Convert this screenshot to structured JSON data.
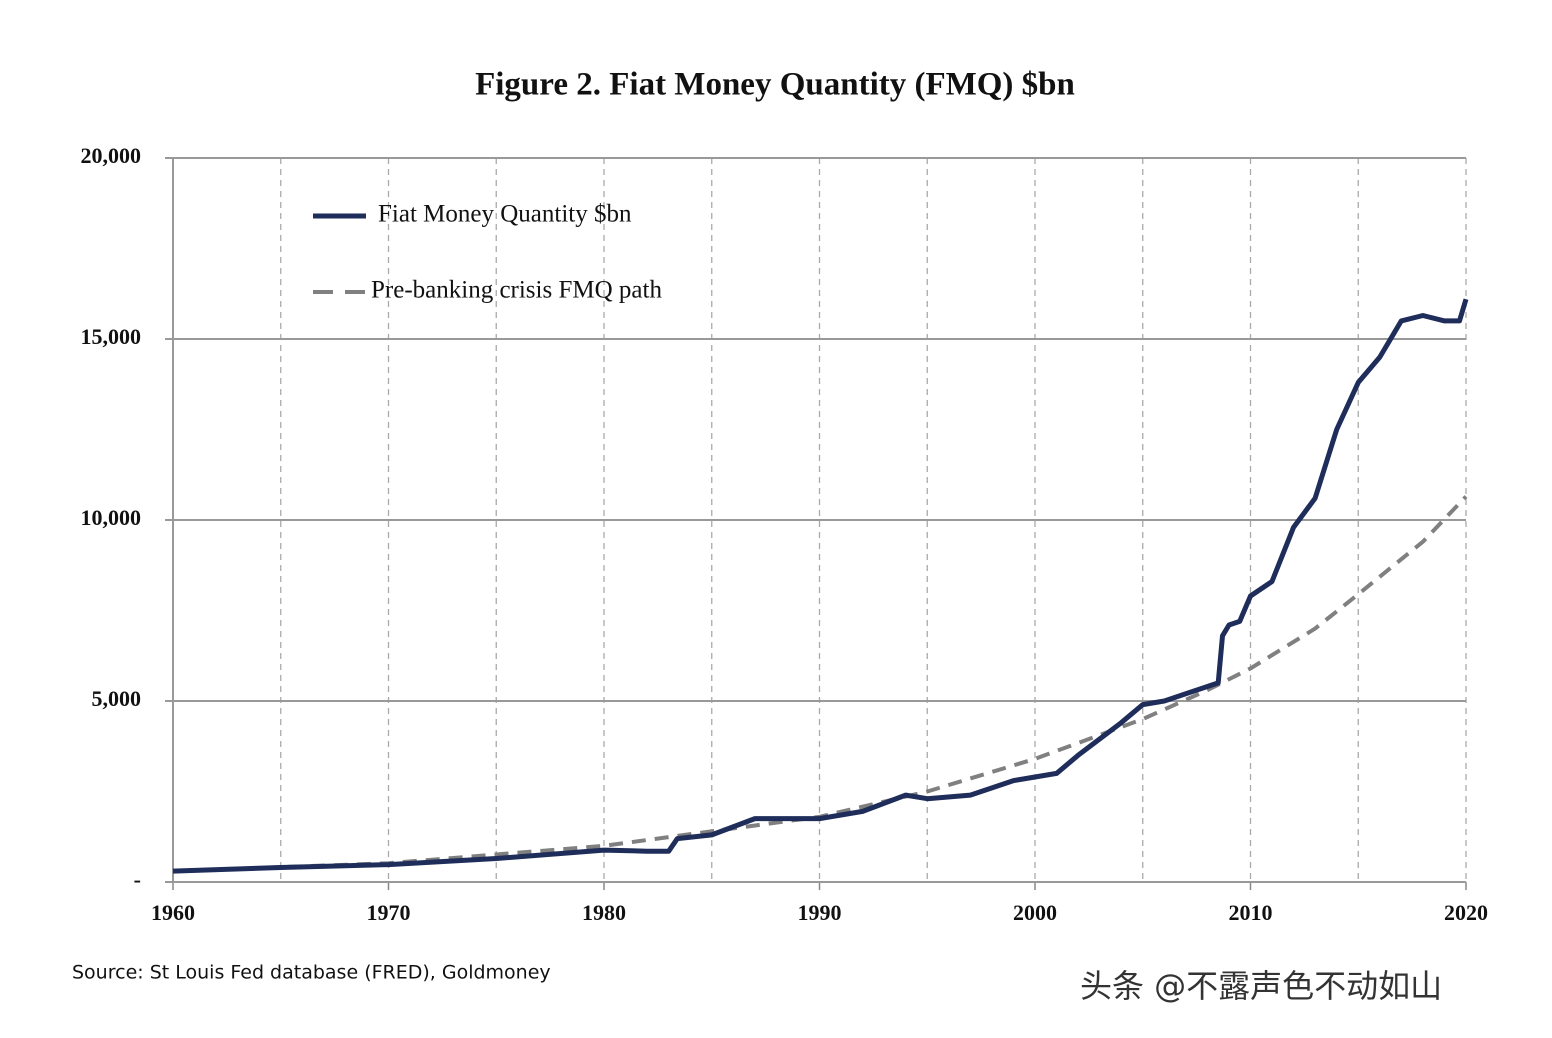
{
  "chart_data": {
    "type": "line",
    "title": "Figure 2. Fiat Money Quantity (FMQ)  $bn",
    "source": "Source: St Louis Fed  database (FRED), Goldmoney",
    "watermark": "头条 @不露声色不动如山",
    "xlim": [
      1960,
      2020
    ],
    "xticks": [
      1960,
      1970,
      1980,
      1990,
      2000,
      2010,
      2020
    ],
    "xminorticks": [
      1965,
      1975,
      1985,
      1995,
      2005,
      2015
    ],
    "ylim": [
      0,
      20000
    ],
    "yticks": [
      {
        "value": 0,
        "label": "-"
      },
      {
        "value": 5000,
        "label": "5,000"
      },
      {
        "value": 10000,
        "label": "10,000"
      },
      {
        "value": 15000,
        "label": "15,000"
      },
      {
        "value": 20000,
        "label": "20,000"
      }
    ],
    "grid": true,
    "legend": "upper left",
    "series": [
      {
        "name": "Fiat Money Quantity $bn",
        "color": "#1f2d5a",
        "dashed": false,
        "x": [
          1960,
          1965,
          1970,
          1975,
          1980,
          1982,
          1983,
          1983.4,
          1985,
          1987,
          1990,
          1992,
          1994,
          1995,
          1997,
          1999,
          2001,
          2002,
          2004,
          2005,
          2006,
          2007,
          2008.5,
          2008.7,
          2009,
          2009.5,
          2010,
          2011,
          2012,
          2013,
          2014,
          2015,
          2016,
          2017,
          2018,
          2019,
          2019.7,
          2020
        ],
        "values": [
          300,
          400,
          480,
          650,
          880,
          850,
          850,
          1200,
          1300,
          1750,
          1750,
          1950,
          2400,
          2300,
          2400,
          2800,
          3000,
          3500,
          4400,
          4900,
          5000,
          5200,
          5500,
          6800,
          7100,
          7200,
          7900,
          8300,
          9800,
          10600,
          12500,
          13800,
          14500,
          15500,
          15650,
          15500,
          15500,
          16100
        ]
      },
      {
        "name": "Pre-banking crisis FMQ path",
        "color": "#808080",
        "dashed": true,
        "x": [
          1960,
          1970,
          1980,
          1990,
          1995,
          2000,
          2005,
          2008,
          2010,
          2013,
          2015,
          2018,
          2020
        ],
        "values": [
          300,
          520,
          1000,
          1800,
          2500,
          3400,
          4500,
          5300,
          5900,
          7000,
          7950,
          9400,
          10650
        ]
      }
    ]
  }
}
